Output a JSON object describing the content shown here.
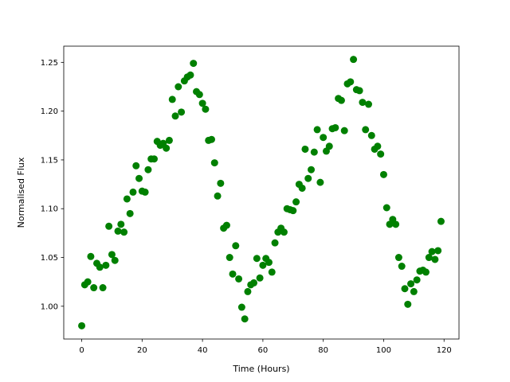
{
  "chart_data": {
    "type": "scatter",
    "xlabel": "Time (Hours)",
    "ylabel": "Normalised Flux",
    "x": [
      0,
      1,
      2,
      3,
      4,
      5,
      6,
      7,
      8,
      9,
      10,
      11,
      12,
      13,
      14,
      15,
      16,
      17,
      18,
      19,
      20,
      21,
      22,
      23,
      24,
      25,
      26,
      27,
      28,
      29,
      30,
      31,
      32,
      33,
      34,
      35,
      36,
      37,
      38,
      39,
      40,
      41,
      42,
      43,
      44,
      45,
      46,
      47,
      48,
      49,
      50,
      51,
      52,
      53,
      54,
      55,
      56,
      57,
      58,
      59,
      60,
      61,
      62,
      63,
      64,
      65,
      66,
      67,
      68,
      69,
      70,
      71,
      72,
      73,
      74,
      75,
      76,
      77,
      78,
      79,
      80,
      81,
      82,
      83,
      84,
      85,
      86,
      87,
      88,
      89,
      90,
      91,
      92,
      93,
      94,
      95,
      96,
      97,
      98,
      99,
      100,
      101,
      102,
      103,
      104,
      105,
      106,
      107,
      108,
      109,
      110,
      111,
      112,
      113,
      114,
      115,
      116,
      117,
      118,
      119
    ],
    "series": [
      {
        "color": "#008000",
        "values": [
          0.98,
          1.022,
          1.025,
          1.051,
          1.019,
          1.044,
          1.04,
          1.019,
          1.042,
          1.082,
          1.053,
          1.047,
          1.077,
          1.084,
          1.076,
          1.11,
          1.095,
          1.117,
          1.144,
          1.131,
          1.118,
          1.117,
          1.14,
          1.151,
          1.151,
          1.169,
          1.165,
          1.167,
          1.162,
          1.17,
          1.212,
          1.195,
          1.225,
          1.199,
          1.231,
          1.235,
          1.237,
          1.249,
          1.22,
          1.217,
          1.208,
          1.202,
          1.17,
          1.171,
          1.147,
          1.113,
          1.126,
          1.08,
          1.083,
          1.05,
          1.033,
          1.062,
          1.028,
          0.999,
          0.987,
          1.015,
          1.022,
          1.024,
          1.049,
          1.029,
          1.042,
          1.049,
          1.045,
          1.035,
          1.065,
          1.076,
          1.08,
          1.076,
          1.1,
          1.099,
          1.098,
          1.107,
          1.125,
          1.121,
          1.161,
          1.131,
          1.14,
          1.158,
          1.181,
          1.127,
          1.173,
          1.159,
          1.164,
          1.182,
          1.183,
          1.213,
          1.211,
          1.18,
          1.228,
          1.23,
          1.253,
          1.222,
          1.221,
          1.209,
          1.181,
          1.207,
          1.175,
          1.161,
          1.164,
          1.156,
          1.135,
          1.101,
          1.084,
          1.089,
          1.084,
          1.05,
          1.041,
          1.018,
          1.002,
          1.023,
          1.015,
          1.027,
          1.036,
          1.037,
          1.035,
          1.05,
          1.056,
          1.048,
          1.057,
          1.087
        ]
      }
    ],
    "xlim": [
      -5.95,
      124.95
    ],
    "xticks": [
      0,
      20,
      40,
      60,
      80,
      100,
      120
    ],
    "ylim": [
      0.9664,
      1.2666
    ],
    "yticks": [
      {
        "value": 1.0,
        "label": "1.00"
      },
      1.05,
      {
        "value": 1.1,
        "label": "1.10"
      },
      1.15,
      {
        "value": 1.2,
        "label": "1.20"
      },
      1.25
    ],
    "grid": false
  }
}
